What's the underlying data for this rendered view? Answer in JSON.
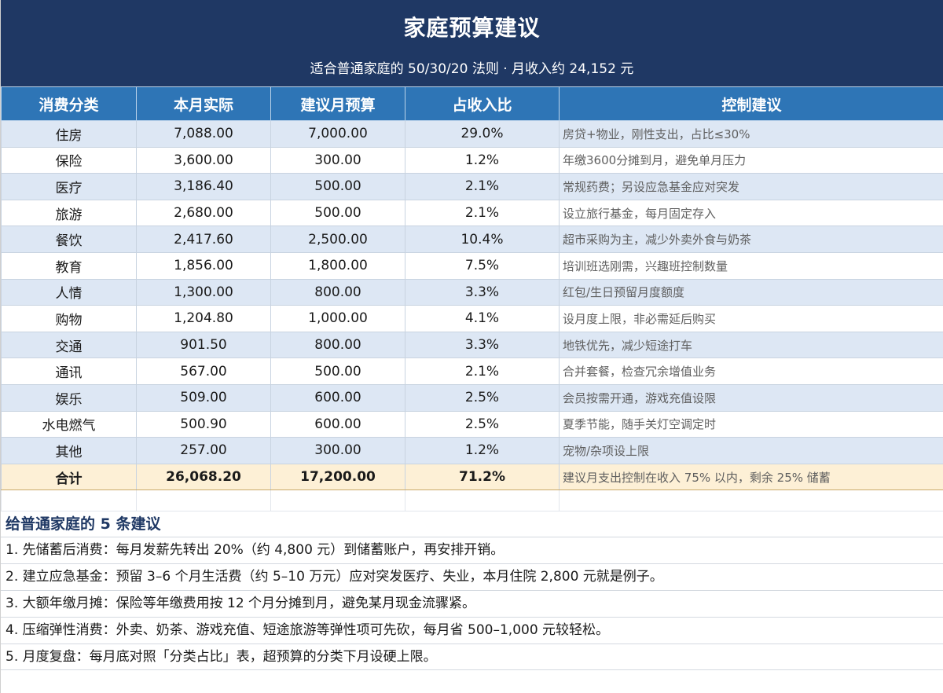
{
  "header": {
    "title": "家庭预算建议",
    "subtitle": "适合普通家庭的 50/30/20 法则 · 月收入约 24,152 元"
  },
  "table": {
    "columns": [
      "消费分类",
      "本月实际",
      "建议月预算",
      "占收入比",
      "控制建议"
    ],
    "rows": [
      {
        "category": "住房",
        "actual": "7,088.00",
        "budget": "7,000.00",
        "ratio": "29.0%",
        "advice": "房贷+物业，刚性支出，占比≤30%"
      },
      {
        "category": "保险",
        "actual": "3,600.00",
        "budget": "300.00",
        "ratio": "1.2%",
        "advice": "年缴3600分摊到月，避免单月压力"
      },
      {
        "category": "医疗",
        "actual": "3,186.40",
        "budget": "500.00",
        "ratio": "2.1%",
        "advice": "常规药费；另设应急基金应对突发"
      },
      {
        "category": "旅游",
        "actual": "2,680.00",
        "budget": "500.00",
        "ratio": "2.1%",
        "advice": "设立旅行基金，每月固定存入"
      },
      {
        "category": "餐饮",
        "actual": "2,417.60",
        "budget": "2,500.00",
        "ratio": "10.4%",
        "advice": "超市采购为主，减少外卖外食与奶茶"
      },
      {
        "category": "教育",
        "actual": "1,856.00",
        "budget": "1,800.00",
        "ratio": "7.5%",
        "advice": "培训班选刚需，兴趣班控制数量"
      },
      {
        "category": "人情",
        "actual": "1,300.00",
        "budget": "800.00",
        "ratio": "3.3%",
        "advice": "红包/生日预留月度额度"
      },
      {
        "category": "购物",
        "actual": "1,204.80",
        "budget": "1,000.00",
        "ratio": "4.1%",
        "advice": "设月度上限，非必需延后购买"
      },
      {
        "category": "交通",
        "actual": "901.50",
        "budget": "800.00",
        "ratio": "3.3%",
        "advice": "地铁优先，减少短途打车"
      },
      {
        "category": "通讯",
        "actual": "567.00",
        "budget": "500.00",
        "ratio": "2.1%",
        "advice": "合并套餐，检查冗余增值业务"
      },
      {
        "category": "娱乐",
        "actual": "509.00",
        "budget": "600.00",
        "ratio": "2.5%",
        "advice": "会员按需开通，游戏充值设限"
      },
      {
        "category": "水电燃气",
        "actual": "500.90",
        "budget": "600.00",
        "ratio": "2.5%",
        "advice": "夏季节能，随手关灯空调定时"
      },
      {
        "category": "其他",
        "actual": "257.00",
        "budget": "300.00",
        "ratio": "1.2%",
        "advice": "宠物/杂项设上限"
      }
    ],
    "total": {
      "category": "合计",
      "actual": "26,068.20",
      "budget": "17,200.00",
      "ratio": "71.2%",
      "advice": "建议月支出控制在收入 75% 以内，剩余 25% 储蓄"
    }
  },
  "tips": {
    "title": "给普通家庭的 5 条建议",
    "items": [
      "1. 先储蓄后消费：每月发薪先转出 20%（约 4,800 元）到储蓄账户，再安排开销。",
      "2. 建立应急基金：预留 3–6 个月生活费（约 5–10 万元）应对突发医疗、失业，本月住院 2,800 元就是例子。",
      "3. 大额年缴月摊：保险等年缴费用按 12 个月分摊到月，避免某月现金流骤紧。",
      "4. 压缩弹性消费：外卖、奶茶、游戏充值、短途旅游等弹性项可先砍，每月省 500–1,000 元较轻松。",
      "5. 月度复盘：每月底对照「分类占比」表，超预算的分类下月设硬上限。"
    ]
  }
}
